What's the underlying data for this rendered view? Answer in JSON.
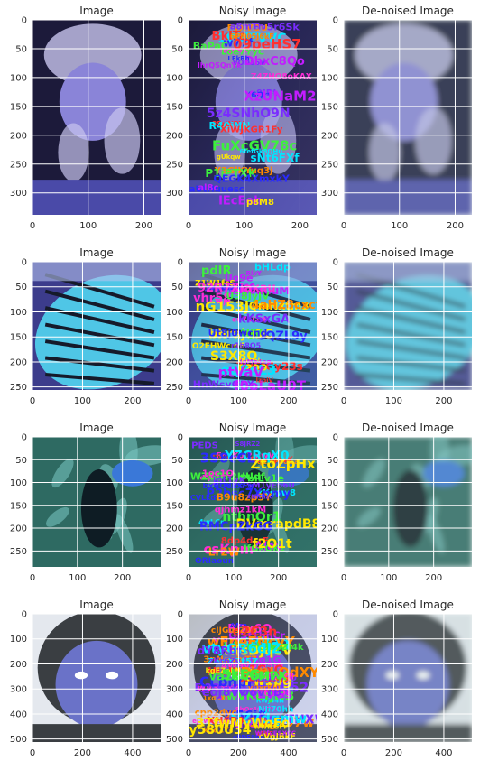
{
  "chart_data": [
    {
      "type": "image",
      "title": "Image",
      "subject": "portrait of a woman in a knit cap",
      "xticks": [
        "0",
        "100",
        "200"
      ],
      "yticks": [
        "0",
        "50",
        "100",
        "150",
        "200",
        "250",
        "300"
      ],
      "xlim": [
        0,
        230
      ],
      "ylim": [
        338,
        0
      ],
      "grid": true
    },
    {
      "type": "image",
      "title": "Noisy Image",
      "subject": "portrait overlaid with random colored text",
      "xticks": [
        "0",
        "100",
        "200"
      ],
      "yticks": [
        "0",
        "50",
        "100",
        "150",
        "200",
        "250",
        "300"
      ],
      "xlim": [
        0,
        230
      ],
      "ylim": [
        338,
        0
      ],
      "grid": true
    },
    {
      "type": "image",
      "title": "De-noised Image",
      "subject": "blurred reconstruction of portrait",
      "xticks": [
        "0",
        "100",
        "200"
      ],
      "yticks": [
        "0",
        "50",
        "100",
        "150",
        "200",
        "250",
        "300"
      ],
      "xlim": [
        0,
        230
      ],
      "ylim": [
        338,
        0
      ],
      "grid": true
    },
    {
      "type": "image",
      "title": "Image",
      "subject": "blue butterfly wing",
      "xticks": [
        "0",
        "100",
        "200"
      ],
      "yticks": [
        "0",
        "50",
        "100",
        "150",
        "200",
        "250"
      ],
      "xlim": [
        0,
        256
      ],
      "ylim": [
        256,
        0
      ],
      "grid": true
    },
    {
      "type": "image",
      "title": "Noisy Image",
      "subject": "butterfly overlaid with random colored text",
      "xticks": [
        "0",
        "100",
        "200"
      ],
      "yticks": [
        "0",
        "50",
        "100",
        "150",
        "200",
        "250"
      ],
      "xlim": [
        0,
        256
      ],
      "ylim": [
        256,
        0
      ],
      "grid": true
    },
    {
      "type": "image",
      "title": "De-noised Image",
      "subject": "blurred reconstruction of butterfly",
      "xticks": [
        "0",
        "100",
        "200"
      ],
      "yticks": [
        "0",
        "50",
        "100",
        "150",
        "200",
        "250"
      ],
      "xlim": [
        0,
        256
      ],
      "ylim": [
        256,
        0
      ],
      "grid": true
    },
    {
      "type": "image",
      "title": "Image",
      "subject": "toucan among green leaves",
      "xticks": [
        "0",
        "100",
        "200"
      ],
      "yticks": [
        "0",
        "50",
        "100",
        "150",
        "200",
        "250"
      ],
      "xlim": [
        0,
        285
      ],
      "ylim": [
        285,
        0
      ],
      "grid": true
    },
    {
      "type": "image",
      "title": "Noisy Image",
      "subject": "toucan overlaid with random colored text",
      "xticks": [
        "0",
        "100",
        "200"
      ],
      "yticks": [
        "0",
        "50",
        "100",
        "150",
        "200",
        "250"
      ],
      "xlim": [
        0,
        285
      ],
      "ylim": [
        285,
        0
      ],
      "grid": true
    },
    {
      "type": "image",
      "title": "De-noised Image",
      "subject": "blurred reconstruction of toucan",
      "xticks": [
        "0",
        "100",
        "200"
      ],
      "yticks": [
        "0",
        "50",
        "100",
        "150",
        "200",
        "250"
      ],
      "xlim": [
        0,
        285
      ],
      "ylim": [
        285,
        0
      ],
      "grid": true
    },
    {
      "type": "image",
      "title": "Image",
      "subject": "baby in a knit hood",
      "xticks": [
        "0",
        "200",
        "400"
      ],
      "yticks": [
        "0",
        "100",
        "200",
        "300",
        "400",
        "500"
      ],
      "xlim": [
        0,
        512
      ],
      "ylim": [
        512,
        0
      ],
      "grid": true
    },
    {
      "type": "image",
      "title": "Noisy Image",
      "subject": "baby overlaid with dense random colored text",
      "xticks": [
        "0",
        "200",
        "400"
      ],
      "yticks": [
        "0",
        "100",
        "200",
        "300",
        "400",
        "500"
      ],
      "xlim": [
        0,
        512
      ],
      "ylim": [
        512,
        0
      ],
      "grid": true
    },
    {
      "type": "image",
      "title": "De-noised Image",
      "subject": "blurred reconstruction of baby",
      "xticks": [
        "0",
        "200",
        "400"
      ],
      "yticks": [
        "0",
        "100",
        "200",
        "300",
        "400",
        "500"
      ],
      "xlim": [
        0,
        512
      ],
      "ylim": [
        512,
        0
      ],
      "grid": true
    }
  ],
  "palette": {
    "row1": {
      "base": "#4a4aa8",
      "mid": "#8a84d8",
      "light": "#c8c4ee",
      "dark": "#1c1a3a"
    },
    "row2": {
      "base": "#4a80c8",
      "mid": "#4fc6e6",
      "light": "#b4c2ee",
      "dark": "#151a2a"
    },
    "row3": {
      "base": "#2e6a62",
      "mid": "#3f8c80",
      "light": "#7cc8c4",
      "dark": "#0e1c24"
    },
    "row4": {
      "base": "#6a72c8",
      "mid": "#8f9aea",
      "light": "#e4e8ee",
      "dark": "#3a3e42"
    },
    "noise": [
      "#ff2bd6",
      "#3df03d",
      "#ffe800",
      "#7a2cff",
      "#ff3030",
      "#00e6ff",
      "#ff8a00",
      "#2a2aff",
      "#c21cff"
    ]
  }
}
